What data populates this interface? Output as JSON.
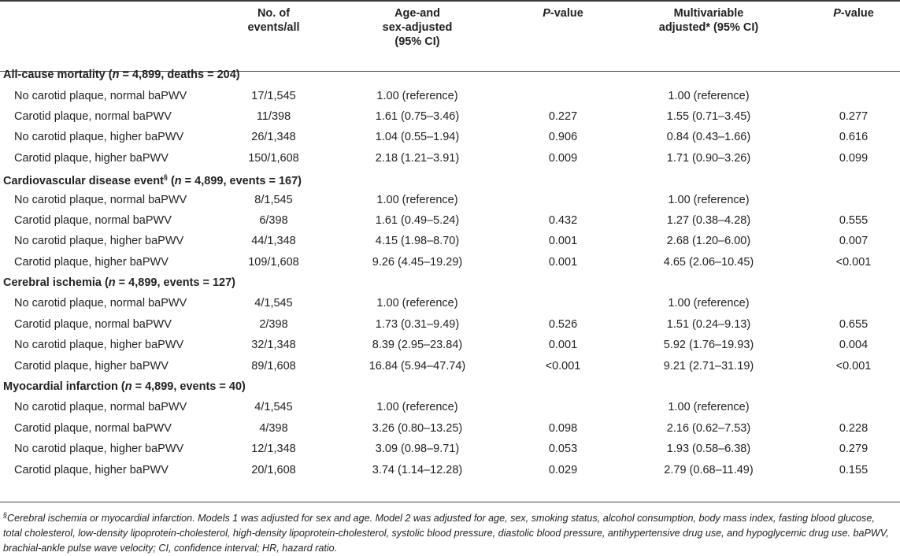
{
  "headers": [
    "",
    "No. of\nevents/all",
    "Age-and\nsex-adjusted\n(95% CI)",
    "P-value",
    "Multivariable\nadjusted* (95% CI)",
    "P-value"
  ],
  "header_parts": {
    "events": [
      "No. of",
      "events/all"
    ],
    "age_sex": [
      "Age-and",
      "sex-adjusted",
      "(95% CI)"
    ],
    "p_italic": "P",
    "p_rest": "-value",
    "multi": [
      "Multivariable",
      "adjusted* (95% CI)"
    ]
  },
  "sections": [
    {
      "title_parts": [
        "All-cause mortality (",
        "n",
        " = 4,899, deaths = 204)"
      ],
      "title_sup": "",
      "rows": [
        [
          "No carotid plaque, normal baPWV",
          "17/1,545",
          "1.00 (reference)",
          "",
          "1.00 (reference)",
          ""
        ],
        [
          "Carotid plaque, normal baPWV",
          "11/398",
          "1.61 (0.75–3.46)",
          "0.227",
          "1.55 (0.71–3.45)",
          "0.277"
        ],
        [
          "No carotid plaque, higher baPWV",
          "26/1,348",
          "1.04 (0.55–1.94)",
          "0.906",
          "0.84 (0.43–1.66)",
          "0.616"
        ],
        [
          "Carotid plaque, higher baPWV",
          "150/1,608",
          "2.18 (1.21–3.91)",
          "0.009",
          "1.71 (0.90–3.26)",
          "0.099"
        ]
      ]
    },
    {
      "title_parts": [
        "Cardiovascular disease event",
        "n",
        " = 4,899, events = 167)"
      ],
      "title_sup": "§",
      "title_open": " (",
      "rows": [
        [
          "No carotid plaque, normal baPWV",
          "8/1,545",
          "1.00 (reference)",
          "",
          "1.00 (reference)",
          ""
        ],
        [
          "Carotid plaque, normal baPWV",
          "6/398",
          "1.61 (0.49–5.24)",
          "0.432",
          "1.27 (0.38–4.28)",
          "0.555"
        ],
        [
          "No carotid plaque, higher baPWV",
          "44/1,348",
          "4.15 (1.98–8.70)",
          "0.001",
          "2.68 (1.20–6.00)",
          "0.007"
        ],
        [
          "Carotid plaque, higher baPWV",
          "109/1,608",
          "9.26 (4.45–19.29)",
          "0.001",
          "4.65 (2.06–10.45)",
          "<0.001"
        ]
      ]
    },
    {
      "title_parts": [
        "Cerebral ischemia (",
        "n",
        " = 4,899, events = 127)"
      ],
      "title_sup": "",
      "rows": [
        [
          "No carotid plaque, normal baPWV",
          "4/1,545",
          "1.00 (reference)",
          "",
          "1.00 (reference)",
          ""
        ],
        [
          "Carotid plaque, normal baPWV",
          "2/398",
          "1.73 (0.31–9.49)",
          "0.526",
          "1.51 (0.24–9.13)",
          "0.655"
        ],
        [
          "No carotid plaque, higher baPWV",
          "32/1,348",
          "8.39 (2.95–23.84)",
          "0.001",
          "5.92 (1.76–19.93)",
          "0.004"
        ],
        [
          "Carotid plaque, higher baPWV",
          "89/1,608",
          "16.84 (5.94–47.74)",
          "<0.001",
          "9.21 (2.71–31.19)",
          "<0.001"
        ]
      ]
    },
    {
      "title_parts": [
        "Myocardial infarction (",
        "n",
        " = 4,899, events = 40)"
      ],
      "title_sup": "",
      "rows": [
        [
          "No carotid plaque, normal baPWV",
          "4/1,545",
          "1.00 (reference)",
          "",
          "1.00 (reference)",
          ""
        ],
        [
          "Carotid plaque, normal baPWV",
          "4/398",
          "3.26 (0.80–13.25)",
          "0.098",
          "2.16 (0.62–7.53)",
          "0.228"
        ],
        [
          "No carotid plaque, higher baPWV",
          "12/1,348",
          "3.09 (0.98–9.71)",
          "0.053",
          "1.93 (0.58–6.38)",
          "0.279"
        ],
        [
          "Carotid plaque, higher baPWV",
          "20/1,608",
          "3.74 (1.14–12.28)",
          "0.029",
          "2.79 (0.68–11.49)",
          "0.155"
        ]
      ]
    }
  ],
  "footnote": {
    "sup": "§",
    "text": "Cerebral ischemia or myocardial infarction. Models 1 was adjusted for sex and age. Model 2 was adjusted for age, sex, smoking status, alcohol consumption, body mass index, fasting blood glucose, total cholesterol, low-density lipoprotein-cholesterol, high-density lipoprotein-cholesterol, systolic blood pressure, diastolic blood pressure, antihypertensive drug use, and hypoglycemic drug use. baPWV, brachial-ankle pulse wave velocity; CI, confidence interval; HR, hazard ratio."
  }
}
